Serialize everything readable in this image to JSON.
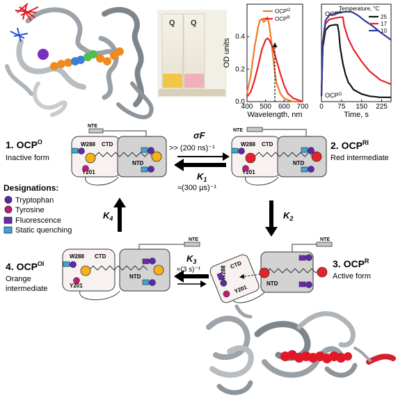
{
  "states": {
    "s1": {
      "name": "1. OCP",
      "sup": "O",
      "desc": "Inactive form"
    },
    "s2": {
      "name": "2. OCP",
      "sup": "RI",
      "desc": "Red intermediate"
    },
    "s3": {
      "name": "3. OCP",
      "sup": "R",
      "desc": "Active form"
    },
    "s4": {
      "name": "4. OCP",
      "sup": "OI",
      "desc1": "Orange",
      "desc2": "intermediate"
    }
  },
  "residues": {
    "w288": "W288",
    "y201": "Y201",
    "ctd": "CTD",
    "ntd": "NTD",
    "nte": "NTE"
  },
  "rates": {
    "sigmaF": "σF",
    "sigmaF_time": ">> (200 ns)⁻¹",
    "k1_sym": "K",
    "k1_sub": "1",
    "k1_time": "≈(300 µs)⁻¹",
    "k2_sym": "K",
    "k2_sub": "2",
    "k3_sym": "K",
    "k3_sub": "3",
    "k3_time": "≈(3 s)⁻¹",
    "k4_sym": "K",
    "k4_sub": "4"
  },
  "legend": {
    "title": "Designations:",
    "items": [
      "Tryptophan",
      "Tyrosine",
      "Fluorescence",
      "Static quenching"
    ]
  },
  "photo": {
    "label_left": "Q",
    "label_right": "Q"
  },
  "chart_data": [
    {
      "type": "line",
      "xlabel": "Wavelength, nm",
      "ylabel": "OD units",
      "xlim": [
        400,
        700
      ],
      "ylim": [
        0,
        0.6
      ],
      "xticks": [
        400,
        500,
        600,
        700
      ],
      "yticks": [
        0.0,
        0.2,
        0.4
      ],
      "legend_position": "top-right",
      "series": [
        {
          "name": "OCP",
          "name_sup": "O",
          "color": "#f07820",
          "x": [
            400,
            420,
            440,
            460,
            470,
            480,
            490,
            500,
            510,
            520,
            530,
            540,
            550,
            560,
            580,
            600,
            620,
            650,
            700
          ],
          "y": [
            0.05,
            0.16,
            0.33,
            0.46,
            0.5,
            0.51,
            0.49,
            0.5,
            0.52,
            0.47,
            0.38,
            0.28,
            0.18,
            0.11,
            0.05,
            0.02,
            0.01,
            0.0,
            0.0
          ]
        },
        {
          "name": "OCP",
          "name_sup": "R",
          "color": "#e8202a",
          "x": [
            400,
            420,
            440,
            460,
            480,
            500,
            510,
            520,
            540,
            560,
            580,
            600,
            620,
            650,
            700
          ],
          "y": [
            0.03,
            0.06,
            0.13,
            0.22,
            0.32,
            0.38,
            0.39,
            0.38,
            0.33,
            0.25,
            0.17,
            0.1,
            0.05,
            0.02,
            0.0
          ]
        }
      ]
    },
    {
      "type": "line",
      "xlabel": "Time, s",
      "legend_title": "Temperature, °C",
      "xlim": [
        0,
        260
      ],
      "ylim": [
        0,
        0.9
      ],
      "xticks": [
        0,
        75,
        150,
        225
      ],
      "legend_position": "top-right",
      "annotations": [
        {
          "text": "OCP",
          "sup": "R"
        },
        {
          "text": "OCP",
          "sup": "O"
        }
      ],
      "series": [
        {
          "name": "25",
          "color": "#111111",
          "x": [
            0,
            5,
            15,
            30,
            50,
            60,
            65,
            70,
            80,
            90,
            100,
            120,
            150,
            180,
            220,
            260
          ],
          "y": [
            0.06,
            0.5,
            0.66,
            0.7,
            0.71,
            0.71,
            0.64,
            0.5,
            0.35,
            0.25,
            0.18,
            0.11,
            0.07,
            0.05,
            0.04,
            0.04
          ]
        },
        {
          "name": "17",
          "color": "#e8202a",
          "x": [
            0,
            5,
            15,
            30,
            50,
            70,
            80,
            85,
            100,
            120,
            150,
            180,
            220,
            260
          ],
          "y": [
            0.05,
            0.55,
            0.72,
            0.76,
            0.77,
            0.78,
            0.78,
            0.7,
            0.58,
            0.48,
            0.37,
            0.28,
            0.2,
            0.16
          ]
        },
        {
          "name": "10",
          "color": "#2a3a9a",
          "x": [
            0,
            5,
            15,
            30,
            60,
            90,
            110,
            120,
            140,
            160,
            190,
            220,
            260
          ],
          "y": [
            0.05,
            0.55,
            0.75,
            0.8,
            0.82,
            0.83,
            0.83,
            0.82,
            0.79,
            0.75,
            0.7,
            0.64,
            0.57
          ]
        }
      ]
    }
  ]
}
